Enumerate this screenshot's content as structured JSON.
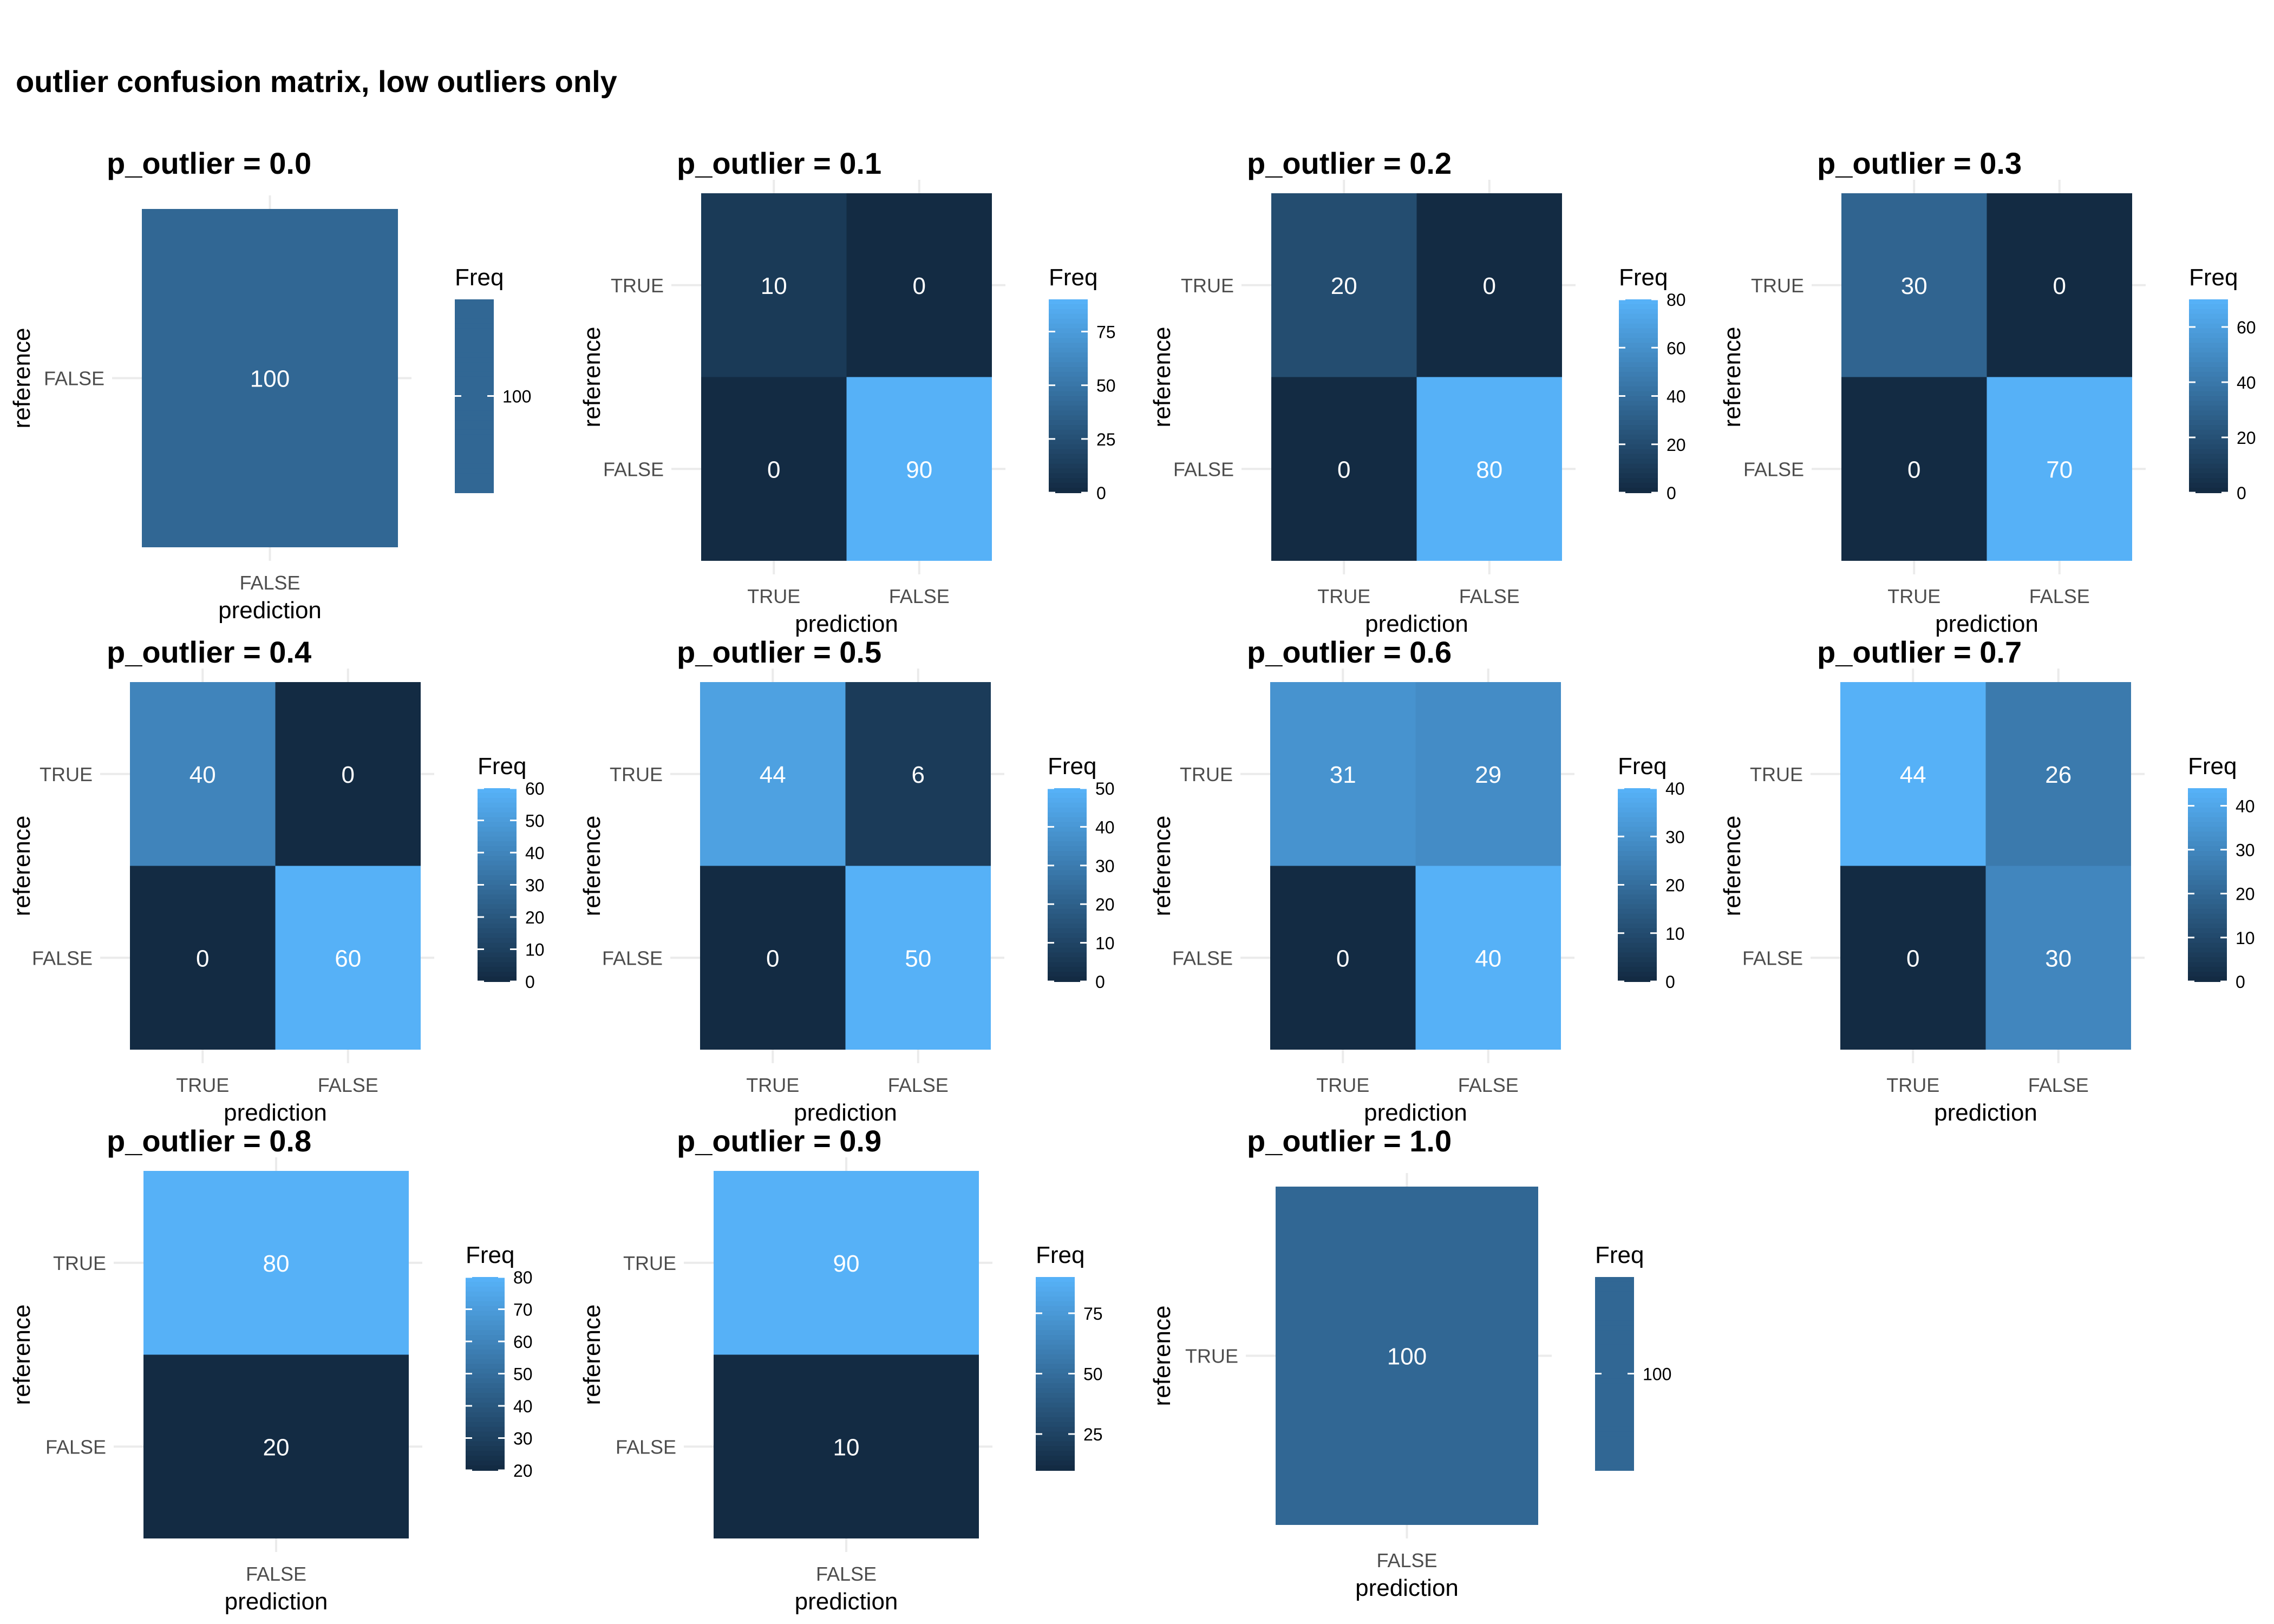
{
  "title": "outlier confusion matrix, low outliers only",
  "colors": {
    "low": "#132B43",
    "high": "#56B1F7",
    "cell_text": "#ffffff",
    "grid": "#ebebeb",
    "axis_text": "#4d4d4d"
  },
  "chart_data": [
    {
      "type": "heatmap",
      "title": "p_outlier = 0.0",
      "xlabel": "prediction",
      "ylabel": "reference",
      "x_categories": [
        "FALSE"
      ],
      "y_categories": [
        "FALSE"
      ],
      "cells": [
        {
          "x": "FALSE",
          "y": "FALSE",
          "value": 100
        }
      ],
      "legend": {
        "title": "Freq",
        "ticks": [
          100
        ],
        "range": [
          100,
          100
        ]
      }
    },
    {
      "type": "heatmap",
      "title": "p_outlier = 0.1",
      "xlabel": "prediction",
      "ylabel": "reference",
      "x_categories": [
        "TRUE",
        "FALSE"
      ],
      "y_categories": [
        "TRUE",
        "FALSE"
      ],
      "cells": [
        {
          "x": "TRUE",
          "y": "TRUE",
          "value": 10
        },
        {
          "x": "FALSE",
          "y": "TRUE",
          "value": 0
        },
        {
          "x": "TRUE",
          "y": "FALSE",
          "value": 0
        },
        {
          "x": "FALSE",
          "y": "FALSE",
          "value": 90
        }
      ],
      "legend": {
        "title": "Freq",
        "ticks": [
          0,
          25,
          50,
          75
        ],
        "range": [
          0,
          90
        ]
      }
    },
    {
      "type": "heatmap",
      "title": "p_outlier = 0.2",
      "xlabel": "prediction",
      "ylabel": "reference",
      "x_categories": [
        "TRUE",
        "FALSE"
      ],
      "y_categories": [
        "TRUE",
        "FALSE"
      ],
      "cells": [
        {
          "x": "TRUE",
          "y": "TRUE",
          "value": 20
        },
        {
          "x": "FALSE",
          "y": "TRUE",
          "value": 0
        },
        {
          "x": "TRUE",
          "y": "FALSE",
          "value": 0
        },
        {
          "x": "FALSE",
          "y": "FALSE",
          "value": 80
        }
      ],
      "legend": {
        "title": "Freq",
        "ticks": [
          0,
          20,
          40,
          60,
          80
        ],
        "range": [
          0,
          80
        ]
      }
    },
    {
      "type": "heatmap",
      "title": "p_outlier = 0.3",
      "xlabel": "prediction",
      "ylabel": "reference",
      "x_categories": [
        "TRUE",
        "FALSE"
      ],
      "y_categories": [
        "TRUE",
        "FALSE"
      ],
      "cells": [
        {
          "x": "TRUE",
          "y": "TRUE",
          "value": 30
        },
        {
          "x": "FALSE",
          "y": "TRUE",
          "value": 0
        },
        {
          "x": "TRUE",
          "y": "FALSE",
          "value": 0
        },
        {
          "x": "FALSE",
          "y": "FALSE",
          "value": 70
        }
      ],
      "legend": {
        "title": "Freq",
        "ticks": [
          0,
          20,
          40,
          60
        ],
        "range": [
          0,
          70
        ]
      }
    },
    {
      "type": "heatmap",
      "title": "p_outlier = 0.4",
      "xlabel": "prediction",
      "ylabel": "reference",
      "x_categories": [
        "TRUE",
        "FALSE"
      ],
      "y_categories": [
        "TRUE",
        "FALSE"
      ],
      "cells": [
        {
          "x": "TRUE",
          "y": "TRUE",
          "value": 40
        },
        {
          "x": "FALSE",
          "y": "TRUE",
          "value": 0
        },
        {
          "x": "TRUE",
          "y": "FALSE",
          "value": 0
        },
        {
          "x": "FALSE",
          "y": "FALSE",
          "value": 60
        }
      ],
      "legend": {
        "title": "Freq",
        "ticks": [
          0,
          10,
          20,
          30,
          40,
          50,
          60
        ],
        "range": [
          0,
          60
        ]
      }
    },
    {
      "type": "heatmap",
      "title": "p_outlier = 0.5",
      "xlabel": "prediction",
      "ylabel": "reference",
      "x_categories": [
        "TRUE",
        "FALSE"
      ],
      "y_categories": [
        "TRUE",
        "FALSE"
      ],
      "cells": [
        {
          "x": "TRUE",
          "y": "TRUE",
          "value": 44
        },
        {
          "x": "FALSE",
          "y": "TRUE",
          "value": 6
        },
        {
          "x": "TRUE",
          "y": "FALSE",
          "value": 0
        },
        {
          "x": "FALSE",
          "y": "FALSE",
          "value": 50
        }
      ],
      "legend": {
        "title": "Freq",
        "ticks": [
          0,
          10,
          20,
          30,
          40,
          50
        ],
        "range": [
          0,
          50
        ]
      }
    },
    {
      "type": "heatmap",
      "title": "p_outlier = 0.6",
      "xlabel": "prediction",
      "ylabel": "reference",
      "x_categories": [
        "TRUE",
        "FALSE"
      ],
      "y_categories": [
        "TRUE",
        "FALSE"
      ],
      "cells": [
        {
          "x": "TRUE",
          "y": "TRUE",
          "value": 31
        },
        {
          "x": "FALSE",
          "y": "TRUE",
          "value": 29
        },
        {
          "x": "TRUE",
          "y": "FALSE",
          "value": 0
        },
        {
          "x": "FALSE",
          "y": "FALSE",
          "value": 40
        }
      ],
      "legend": {
        "title": "Freq",
        "ticks": [
          0,
          10,
          20,
          30,
          40
        ],
        "range": [
          0,
          40
        ]
      }
    },
    {
      "type": "heatmap",
      "title": "p_outlier = 0.7",
      "xlabel": "prediction",
      "ylabel": "reference",
      "x_categories": [
        "TRUE",
        "FALSE"
      ],
      "y_categories": [
        "TRUE",
        "FALSE"
      ],
      "cells": [
        {
          "x": "TRUE",
          "y": "TRUE",
          "value": 44
        },
        {
          "x": "FALSE",
          "y": "TRUE",
          "value": 26
        },
        {
          "x": "TRUE",
          "y": "FALSE",
          "value": 0
        },
        {
          "x": "FALSE",
          "y": "FALSE",
          "value": 30
        }
      ],
      "legend": {
        "title": "Freq",
        "ticks": [
          0,
          10,
          20,
          30,
          40
        ],
        "range": [
          0,
          44
        ]
      }
    },
    {
      "type": "heatmap",
      "title": "p_outlier = 0.8",
      "xlabel": "prediction",
      "ylabel": "reference",
      "x_categories": [
        "FALSE"
      ],
      "y_categories": [
        "TRUE",
        "FALSE"
      ],
      "cells": [
        {
          "x": "FALSE",
          "y": "TRUE",
          "value": 80
        },
        {
          "x": "FALSE",
          "y": "FALSE",
          "value": 20
        }
      ],
      "legend": {
        "title": "Freq",
        "ticks": [
          20,
          30,
          40,
          50,
          60,
          70,
          80
        ],
        "range": [
          20,
          80
        ]
      }
    },
    {
      "type": "heatmap",
      "title": "p_outlier = 0.9",
      "xlabel": "prediction",
      "ylabel": "reference",
      "x_categories": [
        "FALSE"
      ],
      "y_categories": [
        "TRUE",
        "FALSE"
      ],
      "cells": [
        {
          "x": "FALSE",
          "y": "TRUE",
          "value": 90
        },
        {
          "x": "FALSE",
          "y": "FALSE",
          "value": 10
        }
      ],
      "legend": {
        "title": "Freq",
        "ticks": [
          25,
          50,
          75
        ],
        "range": [
          10,
          90
        ]
      }
    },
    {
      "type": "heatmap",
      "title": "p_outlier = 1.0",
      "xlabel": "prediction",
      "ylabel": "reference",
      "x_categories": [
        "FALSE"
      ],
      "y_categories": [
        "TRUE"
      ],
      "cells": [
        {
          "x": "FALSE",
          "y": "TRUE",
          "value": 100
        }
      ],
      "legend": {
        "title": "Freq",
        "ticks": [
          100
        ],
        "range": [
          100,
          100
        ]
      }
    }
  ]
}
